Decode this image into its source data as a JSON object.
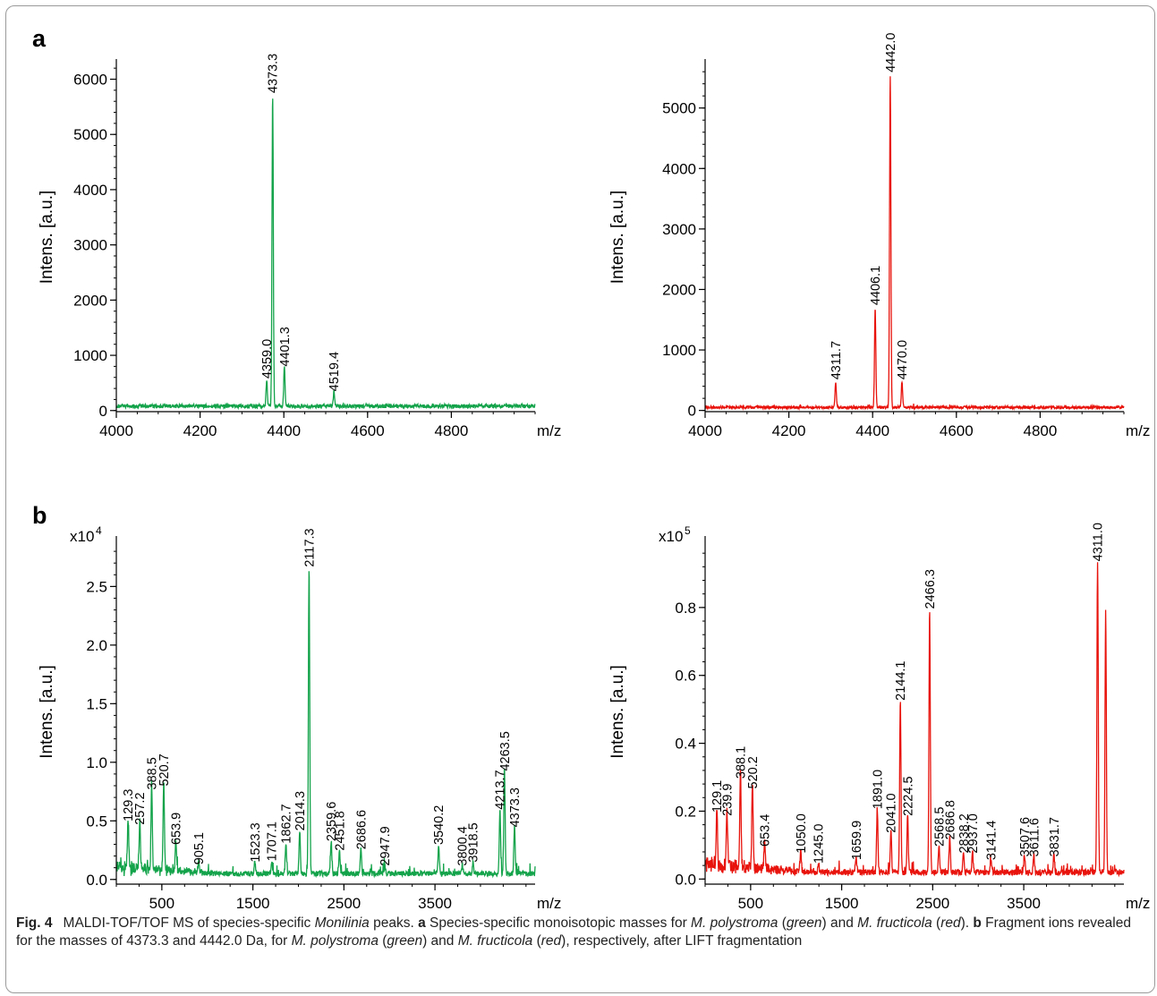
{
  "panels": {
    "a": "a",
    "b": "b"
  },
  "caption": {
    "fig_label": "Fig. 4",
    "text_html": "MALDI-TOF/TOF MS of species-specific <i>Monilinia</i> peaks. <b>a</b> Species-specific monoisotopic masses for <i>M. polystroma</i> (<i>green</i>) and <i>M. fructicola</i> (<i>red</i>). <b>b</b> Fragment ions revealed for the masses of 4373.3 and 4442.0 Da, for <i>M. polystroma</i> (<i>green</i>) and <i>M. fructicola</i> (<i>red</i>), respectively, after LIFT fragmentation"
  },
  "chart_data": [
    {
      "id": "a-left",
      "type": "line",
      "color": "#13a34a",
      "xlabel": "m/z",
      "ylabel": "Intens. [a.u.]",
      "xlim": [
        4000,
        5000
      ],
      "ylim": [
        -20,
        6300
      ],
      "xticks": [
        4000,
        4200,
        4400,
        4600,
        4800
      ],
      "yticks": [
        0,
        1000,
        2000,
        3000,
        4000,
        5000,
        6000
      ],
      "multiplier": "",
      "baseline": 80,
      "peaks": [
        {
          "x": 4359.0,
          "y": 480,
          "label": "4359.0"
        },
        {
          "x": 4373.3,
          "y": 5650,
          "label": "4373.3"
        },
        {
          "x": 4401.3,
          "y": 700,
          "label": "4401.3"
        },
        {
          "x": 4519.4,
          "y": 250,
          "label": "4519.4"
        }
      ]
    },
    {
      "id": "a-right",
      "type": "line",
      "color": "#e8130c",
      "xlabel": "m/z",
      "ylabel": "Intens. [a.u.]",
      "xlim": [
        4000,
        5000
      ],
      "ylim": [
        -20,
        5750
      ],
      "xticks": [
        4000,
        4200,
        4400,
        4600,
        4800
      ],
      "yticks": [
        0,
        1000,
        2000,
        3000,
        4000,
        5000
      ],
      "multiplier": "",
      "baseline": 50,
      "peaks": [
        {
          "x": 4311.7,
          "y": 420,
          "label": "4311.7"
        },
        {
          "x": 4406.1,
          "y": 1650,
          "label": "4406.1"
        },
        {
          "x": 4442.0,
          "y": 5500,
          "label": "4442.0"
        },
        {
          "x": 4470.0,
          "y": 420,
          "label": "4470.0"
        }
      ]
    },
    {
      "id": "b-left",
      "type": "line",
      "color": "#13a34a",
      "xlabel": "m/z",
      "ylabel": "Intens. [a.u.]",
      "xlim": [
        0,
        4600
      ],
      "ylim": [
        -0.04,
        2.9
      ],
      "xticks": [
        500,
        1500,
        2500,
        3500
      ],
      "yticks": [
        0.0,
        0.5,
        1.0,
        1.5,
        2.0,
        2.5
      ],
      "ytick_labels": [
        "0.0",
        "0.5",
        "1.0",
        "1.5",
        "2.0",
        "2.5"
      ],
      "multiplier": "x10",
      "exponent": "4",
      "baseline": 0.05,
      "peaks": [
        {
          "x": 129.3,
          "y": 0.45,
          "label": "129.3"
        },
        {
          "x": 257.2,
          "y": 0.42,
          "label": "257.2"
        },
        {
          "x": 388.5,
          "y": 0.72,
          "label": "388.5"
        },
        {
          "x": 520.7,
          "y": 0.75,
          "label": "520.7"
        },
        {
          "x": 653.9,
          "y": 0.25,
          "label": "653.9"
        },
        {
          "x": 905.1,
          "y": 0.08,
          "label": "905.1"
        },
        {
          "x": 1523.3,
          "y": 0.1,
          "label": "1523.3"
        },
        {
          "x": 1707.1,
          "y": 0.11,
          "label": "1707.1"
        },
        {
          "x": 1862.7,
          "y": 0.26,
          "label": "1862.7"
        },
        {
          "x": 2014.3,
          "y": 0.37,
          "label": "2014.3"
        },
        {
          "x": 2117.3,
          "y": 2.62,
          "label": "2117.3"
        },
        {
          "x": 2359.6,
          "y": 0.28,
          "label": "2359.6"
        },
        {
          "x": 2451.8,
          "y": 0.2,
          "label": "2451.8"
        },
        {
          "x": 2686.6,
          "y": 0.21,
          "label": "2686.6"
        },
        {
          "x": 2947.9,
          "y": 0.07,
          "label": "2947.9"
        },
        {
          "x": 3540.2,
          "y": 0.25,
          "label": "3540.2"
        },
        {
          "x": 3800.4,
          "y": 0.07,
          "label": "3800.4"
        },
        {
          "x": 3918.5,
          "y": 0.1,
          "label": "3918.5"
        },
        {
          "x": 4213.7,
          "y": 0.55,
          "label": "4213.7"
        },
        {
          "x": 4263.5,
          "y": 0.88,
          "label": "4263.5"
        },
        {
          "x": 4373.3,
          "y": 0.4,
          "label": "4373.3"
        }
      ]
    },
    {
      "id": "b-right",
      "type": "line",
      "color": "#e8130c",
      "xlabel": "m/z",
      "ylabel": "Intens. [a.u.]",
      "xlim": [
        0,
        4600
      ],
      "ylim": [
        -0.015,
        1.0
      ],
      "xticks": [
        500,
        1500,
        2500,
        3500
      ],
      "yticks": [
        0.0,
        0.2,
        0.4,
        0.6,
        0.8
      ],
      "ytick_labels": [
        "0.0",
        "0.2",
        "0.4",
        "0.6",
        "0.8"
      ],
      "multiplier": "x10",
      "exponent": "5",
      "baseline": 0.02,
      "peaks": [
        {
          "x": 129.1,
          "y": 0.18,
          "label": "129.1"
        },
        {
          "x": 239.9,
          "y": 0.17,
          "label": "239.9"
        },
        {
          "x": 388.1,
          "y": 0.28,
          "label": "388.1"
        },
        {
          "x": 520.2,
          "y": 0.25,
          "label": "520.2"
        },
        {
          "x": 653.4,
          "y": 0.08,
          "label": "653.4"
        },
        {
          "x": 1050.0,
          "y": 0.06,
          "label": "1050.0"
        },
        {
          "x": 1245.0,
          "y": 0.03,
          "label": "1245.0"
        },
        {
          "x": 1659.9,
          "y": 0.04,
          "label": "1659.9"
        },
        {
          "x": 1891.0,
          "y": 0.19,
          "label": "1891.0"
        },
        {
          "x": 2041.0,
          "y": 0.12,
          "label": "2041.0"
        },
        {
          "x": 2144.1,
          "y": 0.51,
          "label": "2144.1"
        },
        {
          "x": 2224.5,
          "y": 0.17,
          "label": "2224.5"
        },
        {
          "x": 2466.3,
          "y": 0.78,
          "label": "2466.3"
        },
        {
          "x": 2568.5,
          "y": 0.08,
          "label": "2568.5"
        },
        {
          "x": 2686.8,
          "y": 0.1,
          "label": "2686.8"
        },
        {
          "x": 2838.2,
          "y": 0.06,
          "label": "2838.2"
        },
        {
          "x": 2937.0,
          "y": 0.06,
          "label": "2937.0"
        },
        {
          "x": 3141.4,
          "y": 0.04,
          "label": "3141.4"
        },
        {
          "x": 3507.6,
          "y": 0.05,
          "label": "3507.6"
        },
        {
          "x": 3611.6,
          "y": 0.05,
          "label": "3611.6"
        },
        {
          "x": 3831.7,
          "y": 0.05,
          "label": "3831.7"
        },
        {
          "x": 4311.0,
          "y": 0.92,
          "label": "4311.0"
        },
        {
          "x": 4400.0,
          "y": 0.77,
          "label": ""
        }
      ]
    }
  ]
}
